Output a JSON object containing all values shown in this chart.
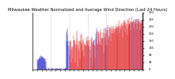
{
  "title": "Milwaukee Weather Normalized and Average Wind Direction (Last 24 Hours)",
  "title_fontsize": 3.8,
  "bg_color": "#ffffff",
  "plot_bg_color": "#ffffff",
  "line_color_red": "#dd0000",
  "line_color_blue": "#0000cc",
  "grid_color": "#aaaaaa",
  "tick_color": "#000000",
  "ylim": [
    0,
    360
  ],
  "n_points": 288,
  "vgrid_positions": [
    48,
    96,
    144,
    192,
    240
  ],
  "ytick_positions": [
    0,
    45,
    90,
    135,
    180,
    225,
    270,
    315,
    360
  ],
  "ytick_labels": [
    "0",
    "45",
    "90",
    "135",
    "180",
    "225",
    "270",
    "315",
    "360"
  ]
}
